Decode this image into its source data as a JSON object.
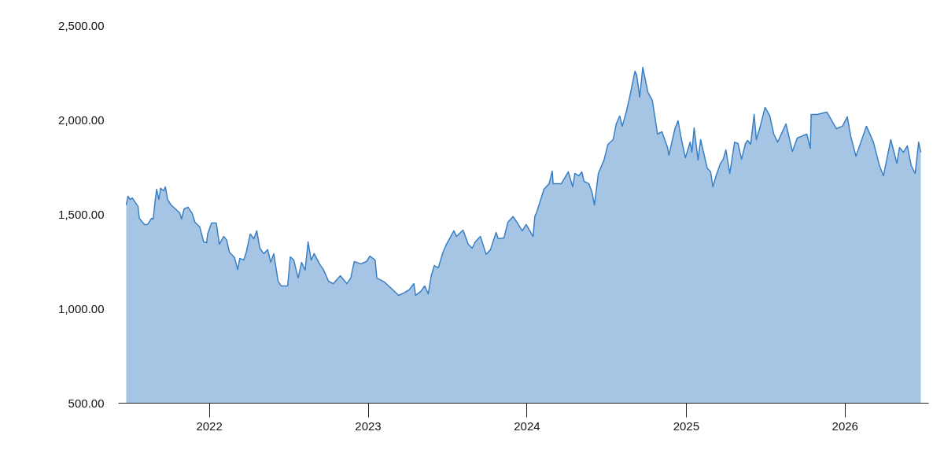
{
  "chart_data": {
    "type": "area",
    "x": [
      "2021-06-24",
      "2021-06-28",
      "2021-07-03",
      "2021-07-08",
      "2021-07-21",
      "2021-07-24",
      "2021-08-05",
      "2021-08-12",
      "2021-08-21",
      "2021-08-25",
      "2021-08-30",
      "2021-09-02",
      "2021-09-07",
      "2021-09-11",
      "2021-09-18",
      "2021-09-22",
      "2021-09-27",
      "2021-10-05",
      "2021-10-15",
      "2021-10-25",
      "2021-10-29",
      "2021-11-04",
      "2021-11-13",
      "2021-11-22",
      "2021-11-29",
      "2021-12-10",
      "2021-12-19",
      "2021-12-26",
      "2021-12-28",
      "2022-01-06",
      "2022-01-17",
      "2022-01-24",
      "2022-02-03",
      "2022-02-10",
      "2022-02-16",
      "2022-02-28",
      "2022-03-07",
      "2022-03-12",
      "2022-03-21",
      "2022-03-27",
      "2022-04-05",
      "2022-04-13",
      "2022-04-20",
      "2022-04-27",
      "2022-05-06",
      "2022-05-15",
      "2022-05-22",
      "2022-05-29",
      "2022-06-08",
      "2022-06-15",
      "2022-06-30",
      "2022-07-06",
      "2022-07-14",
      "2022-07-24",
      "2022-08-01",
      "2022-08-09",
      "2022-08-16",
      "2022-08-23",
      "2022-08-30",
      "2022-09-11",
      "2022-09-20",
      "2022-10-02",
      "2022-10-13",
      "2022-10-29",
      "2022-11-13",
      "2022-11-22",
      "2022-11-30",
      "2022-12-15",
      "2022-12-28",
      "2023-01-05",
      "2023-01-17",
      "2023-01-21",
      "2023-02-07",
      "2023-02-25",
      "2023-03-12",
      "2023-03-23",
      "2023-04-05",
      "2023-04-16",
      "2023-04-20",
      "2023-05-02",
      "2023-05-11",
      "2023-05-19",
      "2023-05-26",
      "2023-06-02",
      "2023-06-11",
      "2023-06-22",
      "2023-06-30",
      "2023-07-17",
      "2023-07-23",
      "2023-08-07",
      "2023-08-19",
      "2023-08-28",
      "2023-09-04",
      "2023-09-16",
      "2023-09-29",
      "2023-10-09",
      "2023-10-22",
      "2023-10-27",
      "2023-11-09",
      "2023-11-18",
      "2023-11-30",
      "2023-12-10",
      "2023-12-21",
      "2023-12-30",
      "2024-01-15",
      "2024-01-19",
      "2024-01-24",
      "2024-02-09",
      "2024-02-21",
      "2024-02-28",
      "2024-03-01",
      "2024-03-20",
      "2024-04-05",
      "2024-04-15",
      "2024-04-20",
      "2024-04-29",
      "2024-05-06",
      "2024-05-11",
      "2024-05-22",
      "2024-05-29",
      "2024-06-04",
      "2024-06-13",
      "2024-06-26",
      "2024-07-05",
      "2024-07-17",
      "2024-07-24",
      "2024-08-01",
      "2024-08-07",
      "2024-08-16",
      "2024-08-25",
      "2024-09-05",
      "2024-09-09",
      "2024-09-16",
      "2024-09-23",
      "2024-10-05",
      "2024-10-15",
      "2024-10-27",
      "2024-11-06",
      "2024-11-19",
      "2024-11-22",
      "2024-12-06",
      "2024-12-13",
      "2024-12-21",
      "2024-12-30",
      "2025-01-10",
      "2025-01-14",
      "2025-01-19",
      "2025-01-28",
      "2025-02-03",
      "2025-02-18",
      "2025-02-26",
      "2025-03-03",
      "2025-03-11",
      "2025-03-20",
      "2025-03-27",
      "2025-04-02",
      "2025-04-11",
      "2025-04-22",
      "2025-04-30",
      "2025-05-08",
      "2025-05-17",
      "2025-05-22",
      "2025-05-29",
      "2025-06-06",
      "2025-06-11",
      "2025-06-19",
      "2025-07-01",
      "2025-07-12",
      "2025-07-21",
      "2025-07-30",
      "2025-08-18",
      "2025-09-02",
      "2025-09-13",
      "2025-10-05",
      "2025-10-13",
      "2025-10-15",
      "2025-10-29",
      "2025-11-20",
      "2025-12-12",
      "2025-12-26",
      "2026-01-06",
      "2026-01-14",
      "2026-01-26",
      "2026-02-19",
      "2026-03-07",
      "2026-03-21",
      "2026-03-30",
      "2026-04-16",
      "2026-04-30",
      "2026-05-06",
      "2026-05-15",
      "2026-05-24",
      "2026-06-02",
      "2026-06-11",
      "2026-06-19",
      "2026-06-24"
    ],
    "series": [
      {
        "color": "#3a7fc4",
        "values": [
          1550,
          1596,
          1579,
          1587,
          1542,
          1479,
          1446,
          1446,
          1479,
          1475,
          1583,
          1633,
          1579,
          1638,
          1625,
          1646,
          1579,
          1550,
          1529,
          1508,
          1475,
          1529,
          1538,
          1508,
          1458,
          1433,
          1354,
          1350,
          1396,
          1454,
          1454,
          1342,
          1383,
          1363,
          1300,
          1271,
          1208,
          1267,
          1258,
          1300,
          1396,
          1371,
          1413,
          1321,
          1292,
          1313,
          1246,
          1292,
          1146,
          1121,
          1121,
          1275,
          1258,
          1163,
          1246,
          1204,
          1354,
          1258,
          1292,
          1238,
          1208,
          1146,
          1133,
          1175,
          1133,
          1163,
          1250,
          1238,
          1250,
          1279,
          1258,
          1163,
          1142,
          1104,
          1071,
          1083,
          1100,
          1133,
          1071,
          1092,
          1121,
          1079,
          1175,
          1229,
          1217,
          1300,
          1342,
          1413,
          1383,
          1417,
          1342,
          1321,
          1354,
          1383,
          1288,
          1313,
          1404,
          1371,
          1375,
          1458,
          1488,
          1454,
          1413,
          1446,
          1383,
          1488,
          1517,
          1633,
          1663,
          1729,
          1663,
          1663,
          1725,
          1646,
          1717,
          1704,
          1725,
          1675,
          1663,
          1621,
          1550,
          1717,
          1788,
          1871,
          1896,
          1979,
          2021,
          1967,
          2042,
          2133,
          2258,
          2238,
          2121,
          2279,
          2146,
          2104,
          1925,
          1938,
          1854,
          1813,
          1954,
          1996,
          1896,
          1800,
          1883,
          1829,
          1958,
          1788,
          1896,
          1746,
          1725,
          1646,
          1708,
          1767,
          1792,
          1842,
          1717,
          1883,
          1875,
          1792,
          1875,
          1892,
          1871,
          2029,
          1896,
          1958,
          2067,
          2021,
          1925,
          1883,
          1979,
          1833,
          1904,
          1925,
          1850,
          2029,
          2029,
          2042,
          1954,
          1967,
          2017,
          1913,
          1808,
          1967,
          1883,
          1758,
          1704,
          1896,
          1771,
          1854,
          1829,
          1863,
          1758,
          1717,
          1883,
          1829
        ]
      }
    ],
    "xlim": [
      "2021-06-06",
      "2026-07-12"
    ],
    "xticks": [
      "2022",
      "2023",
      "2024",
      "2025",
      "2026"
    ],
    "ylim": [
      500,
      2500
    ],
    "yticks": [
      {
        "value": 500,
        "label": "500.00"
      },
      {
        "value": 1000,
        "label": "1,000.00"
      },
      {
        "value": 1500,
        "label": "1,500.00"
      },
      {
        "value": 2000,
        "label": "2,000.00"
      },
      {
        "value": 2500,
        "label": "2,500.00"
      }
    ]
  }
}
